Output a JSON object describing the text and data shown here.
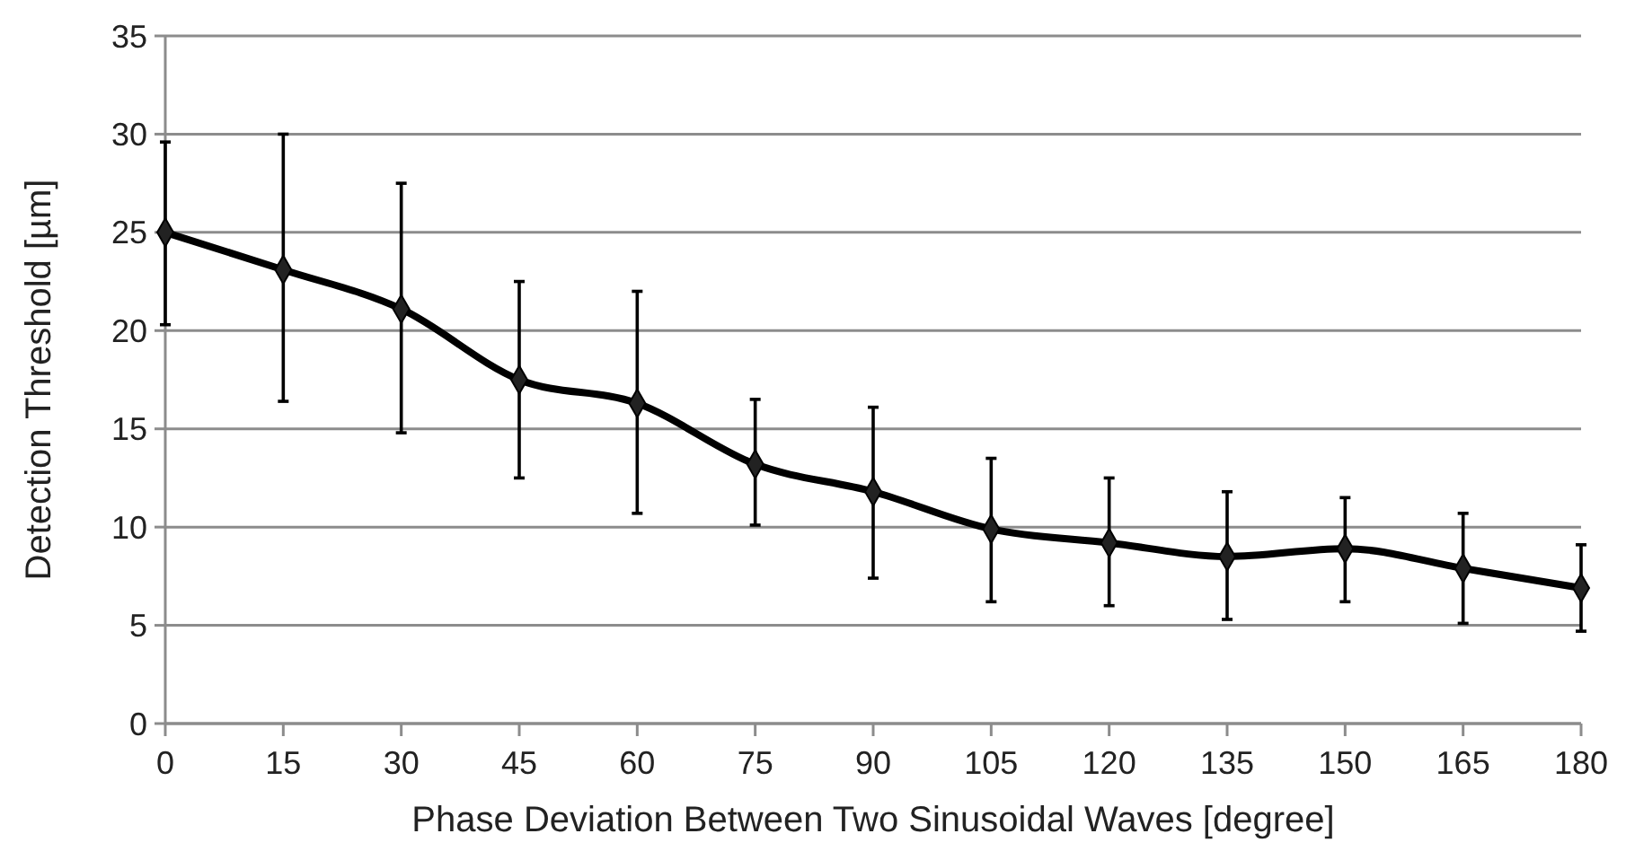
{
  "chart_data": {
    "type": "line",
    "xlabel": "Phase Deviation Between Two Sinusoidal Waves [degree]",
    "ylabel": "Detection Threshold [µm]",
    "x": [
      0,
      15,
      30,
      45,
      60,
      75,
      90,
      105,
      120,
      135,
      150,
      165,
      180
    ],
    "series": [
      {
        "color": "#000000",
        "values": [
          25,
          23.1,
          21.1,
          17.5,
          16.3,
          13.2,
          11.8,
          9.9,
          9.2,
          8.5,
          8.9,
          7.9,
          6.9
        ],
        "errors": [
          [
            20.3,
            29.6
          ],
          [
            16.4,
            30
          ],
          [
            14.8,
            27.5
          ],
          [
            12.5,
            22.5
          ],
          [
            10.7,
            22
          ],
          [
            10.1,
            16.5
          ],
          [
            7.4,
            16.1
          ],
          [
            6.2,
            13.5
          ],
          [
            6,
            12.5
          ],
          [
            5.3,
            11.8
          ],
          [
            6.2,
            11.5
          ],
          [
            5.1,
            10.7
          ],
          [
            4.7,
            9.1
          ]
        ]
      }
    ],
    "xlim": [
      0,
      180
    ],
    "xticks": [
      0,
      15,
      30,
      45,
      60,
      75,
      90,
      105,
      120,
      135,
      150,
      165,
      180
    ],
    "ylim": [
      0,
      35
    ],
    "yticks": [
      0,
      5,
      10,
      15,
      20,
      25,
      30,
      35
    ],
    "grid": "y",
    "marker": "diamond",
    "line_style": "solid"
  }
}
